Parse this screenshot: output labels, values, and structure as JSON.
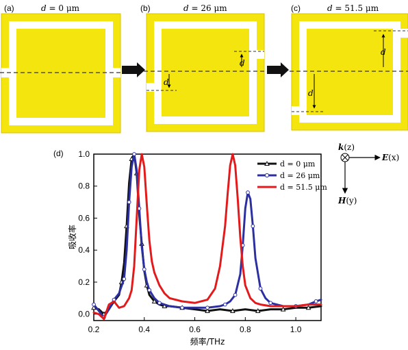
{
  "panels": [
    {
      "label": "(a)",
      "d_symbol": "d",
      "d_rest": " = 0 μm",
      "d_um": 0
    },
    {
      "label": "(b)",
      "d_symbol": "d",
      "d_rest": " = 26 μm",
      "d_um": 26
    },
    {
      "label": "(c)",
      "d_symbol": "d",
      "d_rest": " = 51.5 μm",
      "d_um": 51.5
    }
  ],
  "dimension_symbol": "d",
  "colors": {
    "metal": "#f5e50f",
    "metal_edge": "#d8c200",
    "arrow": "#111111",
    "dashed": "#333333"
  },
  "chart_panel_label": "(d)",
  "coordinate_legend": {
    "k": {
      "sym": "k",
      "axis": "(z)"
    },
    "E": {
      "sym": "E",
      "axis": "(x)"
    },
    "H": {
      "sym": "H",
      "axis": "(y)"
    }
  },
  "chart_data": {
    "type": "line",
    "xlabel": "频率/THz",
    "ylabel": "吸收率",
    "xlim": [
      0.2,
      1.1
    ],
    "ylim": [
      -0.04,
      1.0
    ],
    "xticks": [
      "0.2",
      "0.4",
      "0.6",
      "0.8",
      "1.0"
    ],
    "yticks": [
      "0.0",
      "0.2",
      "0.4",
      "0.6",
      "0.8",
      "1.0"
    ],
    "grid": false,
    "legend_position": "top-right",
    "series": [
      {
        "name": "d = 0 μm",
        "color": "#111111",
        "marker": "triangle",
        "x": [
          0.2,
          0.22,
          0.24,
          0.26,
          0.28,
          0.3,
          0.31,
          0.32,
          0.33,
          0.34,
          0.35,
          0.36,
          0.37,
          0.38,
          0.39,
          0.4,
          0.41,
          0.42,
          0.44,
          0.46,
          0.48,
          0.5,
          0.55,
          0.6,
          0.65,
          0.7,
          0.75,
          0.8,
          0.85,
          0.9,
          0.95,
          1.0,
          1.05,
          1.1
        ],
        "y": [
          0.04,
          0.03,
          0.0,
          0.03,
          0.08,
          0.12,
          0.2,
          0.32,
          0.55,
          0.82,
          0.97,
          1.0,
          0.88,
          0.62,
          0.44,
          0.27,
          0.18,
          0.12,
          0.08,
          0.06,
          0.05,
          0.05,
          0.04,
          0.03,
          0.02,
          0.03,
          0.02,
          0.03,
          0.02,
          0.03,
          0.03,
          0.04,
          0.04,
          0.05
        ]
      },
      {
        "name": "d = 26 μm",
        "color": "#2b2fa0",
        "marker": "circle",
        "x": [
          0.2,
          0.22,
          0.24,
          0.26,
          0.28,
          0.3,
          0.32,
          0.33,
          0.34,
          0.35,
          0.36,
          0.37,
          0.38,
          0.39,
          0.4,
          0.41,
          0.42,
          0.44,
          0.46,
          0.5,
          0.55,
          0.6,
          0.65,
          0.7,
          0.72,
          0.74,
          0.76,
          0.78,
          0.79,
          0.8,
          0.81,
          0.82,
          0.83,
          0.84,
          0.86,
          0.88,
          0.9,
          0.95,
          1.0,
          1.05,
          1.08,
          1.1
        ],
        "y": [
          0.06,
          0.02,
          -0.02,
          0.03,
          0.09,
          0.13,
          0.22,
          0.4,
          0.7,
          0.92,
          1.0,
          0.9,
          0.66,
          0.42,
          0.28,
          0.2,
          0.15,
          0.1,
          0.07,
          0.05,
          0.04,
          0.04,
          0.04,
          0.05,
          0.06,
          0.08,
          0.12,
          0.25,
          0.43,
          0.66,
          0.76,
          0.72,
          0.55,
          0.35,
          0.16,
          0.1,
          0.07,
          0.05,
          0.05,
          0.06,
          0.08,
          0.09
        ]
      },
      {
        "name": "d = 51.5 μm",
        "color": "#e31a1c",
        "marker": "none",
        "x": [
          0.2,
          0.22,
          0.24,
          0.26,
          0.28,
          0.3,
          0.32,
          0.34,
          0.35,
          0.36,
          0.37,
          0.38,
          0.39,
          0.4,
          0.41,
          0.42,
          0.43,
          0.44,
          0.46,
          0.48,
          0.5,
          0.55,
          0.6,
          0.65,
          0.68,
          0.7,
          0.72,
          0.73,
          0.74,
          0.75,
          0.76,
          0.77,
          0.78,
          0.79,
          0.8,
          0.82,
          0.84,
          0.86,
          0.9,
          0.95,
          1.0,
          1.05,
          1.1
        ],
        "y": [
          0.01,
          0.0,
          -0.03,
          0.06,
          0.08,
          0.04,
          0.05,
          0.1,
          0.15,
          0.3,
          0.6,
          0.9,
          1.0,
          0.92,
          0.68,
          0.46,
          0.33,
          0.26,
          0.18,
          0.13,
          0.1,
          0.08,
          0.07,
          0.09,
          0.16,
          0.3,
          0.55,
          0.75,
          0.93,
          1.0,
          0.93,
          0.72,
          0.48,
          0.3,
          0.18,
          0.1,
          0.07,
          0.06,
          0.05,
          0.05,
          0.05,
          0.06,
          0.06
        ]
      }
    ]
  }
}
